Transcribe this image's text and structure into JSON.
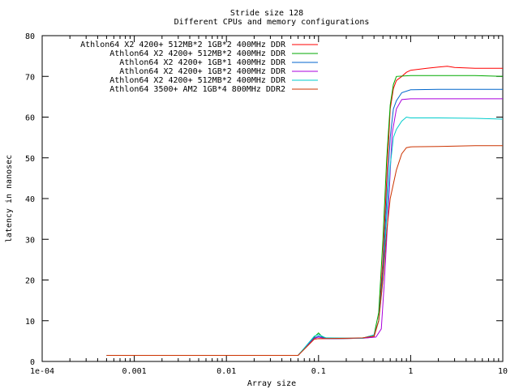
{
  "chart_data": {
    "type": "line",
    "title": "Stride size 128",
    "subtitle": "Different CPUs and memory configurations",
    "xlabel": "Array size",
    "ylabel": "latency in nanosec",
    "x_scale": "log",
    "xlim": [
      0.0001,
      10
    ],
    "ylim": [
      0,
      80
    ],
    "x_ticks": [
      {
        "value": 0.0001,
        "label": "1e-04"
      },
      {
        "value": 0.001,
        "label": "0.001"
      },
      {
        "value": 0.01,
        "label": "0.01"
      },
      {
        "value": 0.1,
        "label": "0.1"
      },
      {
        "value": 1,
        "label": "1"
      },
      {
        "value": 10,
        "label": "10"
      }
    ],
    "y_ticks": [
      0,
      10,
      20,
      30,
      40,
      50,
      60,
      70,
      80
    ],
    "grid": false,
    "legend_position": "top-left",
    "series": [
      {
        "name": "Athlon64 X2 4200+ 512MB*2 1GB*2 400MHz DDR",
        "color": "#ff0000",
        "points": [
          [
            0.0005,
            1.5
          ],
          [
            0.06,
            1.5
          ],
          [
            0.09,
            5.5
          ],
          [
            0.1,
            5.6
          ],
          [
            0.15,
            5.6
          ],
          [
            0.3,
            5.7
          ],
          [
            0.4,
            6
          ],
          [
            0.45,
            10
          ],
          [
            0.5,
            25
          ],
          [
            0.55,
            45
          ],
          [
            0.6,
            62
          ],
          [
            0.65,
            67
          ],
          [
            0.7,
            69
          ],
          [
            0.8,
            70
          ],
          [
            0.9,
            71
          ],
          [
            1,
            71.5
          ],
          [
            1.5,
            72
          ],
          [
            2,
            72.3
          ],
          [
            2.5,
            72.5
          ],
          [
            3,
            72.2
          ],
          [
            5,
            72
          ],
          [
            10,
            72
          ]
        ]
      },
      {
        "name": "Athlon64 X2 4200+ 512MB*2 400MHz DDR",
        "color": "#00aa00",
        "points": [
          [
            0.0005,
            1.5
          ],
          [
            0.06,
            1.5
          ],
          [
            0.09,
            6
          ],
          [
            0.1,
            7
          ],
          [
            0.11,
            6
          ],
          [
            0.13,
            5.6
          ],
          [
            0.3,
            5.7
          ],
          [
            0.4,
            6.5
          ],
          [
            0.45,
            12
          ],
          [
            0.5,
            30
          ],
          [
            0.55,
            50
          ],
          [
            0.6,
            63
          ],
          [
            0.65,
            68
          ],
          [
            0.7,
            70
          ],
          [
            1,
            70.2
          ],
          [
            2,
            70.2
          ],
          [
            5,
            70.2
          ],
          [
            10,
            70
          ]
        ]
      },
      {
        "name": "Athlon64 X2 4200+ 1GB*1 400MHz DDR",
        "color": "#0066cc",
        "points": [
          [
            0.0005,
            1.5
          ],
          [
            0.06,
            1.5
          ],
          [
            0.09,
            5.8
          ],
          [
            0.1,
            6.2
          ],
          [
            0.12,
            5.6
          ],
          [
            0.3,
            5.7
          ],
          [
            0.4,
            6.5
          ],
          [
            0.45,
            10
          ],
          [
            0.5,
            22
          ],
          [
            0.55,
            40
          ],
          [
            0.6,
            55
          ],
          [
            0.65,
            62
          ],
          [
            0.7,
            64
          ],
          [
            0.8,
            66
          ],
          [
            1,
            66.7
          ],
          [
            2,
            66.8
          ],
          [
            5,
            66.8
          ],
          [
            10,
            66.8
          ]
        ]
      },
      {
        "name": "Athlon64 X2 4200+ 1GB*2 400MHz DDR",
        "color": "#aa00dd",
        "points": [
          [
            0.0005,
            1.5
          ],
          [
            0.06,
            1.5
          ],
          [
            0.09,
            5.7
          ],
          [
            0.1,
            6
          ],
          [
            0.12,
            5.6
          ],
          [
            0.3,
            5.7
          ],
          [
            0.42,
            6
          ],
          [
            0.48,
            8
          ],
          [
            0.52,
            20
          ],
          [
            0.58,
            40
          ],
          [
            0.63,
            56
          ],
          [
            0.7,
            62
          ],
          [
            0.8,
            64.3
          ],
          [
            1,
            64.5
          ],
          [
            2,
            64.5
          ],
          [
            5,
            64.5
          ],
          [
            10,
            64.5
          ]
        ]
      },
      {
        "name": "Athlon64 X2 4200+ 512MB*2 400MHz DDR",
        "color": "#00cccc",
        "points": [
          [
            0.0005,
            1.5
          ],
          [
            0.06,
            1.5
          ],
          [
            0.09,
            6.2
          ],
          [
            0.1,
            6.6
          ],
          [
            0.12,
            5.8
          ],
          [
            0.3,
            5.7
          ],
          [
            0.4,
            6.5
          ],
          [
            0.45,
            10
          ],
          [
            0.5,
            20
          ],
          [
            0.55,
            36
          ],
          [
            0.6,
            48
          ],
          [
            0.65,
            55
          ],
          [
            0.7,
            57
          ],
          [
            0.8,
            59
          ],
          [
            0.9,
            60
          ],
          [
            1,
            59.8
          ],
          [
            2,
            59.8
          ],
          [
            5,
            59.7
          ],
          [
            10,
            59.5
          ]
        ]
      },
      {
        "name": "Athlon64 3500+ AM2 1GB*4 800MHz DDR2",
        "color": "#cc3300",
        "points": [
          [
            0.0005,
            1.5
          ],
          [
            0.06,
            1.5
          ],
          [
            0.09,
            5.5
          ],
          [
            0.1,
            5.6
          ],
          [
            0.2,
            5.7
          ],
          [
            0.3,
            5.8
          ],
          [
            0.4,
            6.2
          ],
          [
            0.45,
            10
          ],
          [
            0.5,
            20
          ],
          [
            0.55,
            32
          ],
          [
            0.6,
            40
          ],
          [
            0.7,
            47
          ],
          [
            0.8,
            51
          ],
          [
            0.9,
            52.5
          ],
          [
            1,
            52.7
          ],
          [
            2,
            52.8
          ],
          [
            5,
            53
          ],
          [
            10,
            53
          ]
        ]
      }
    ]
  }
}
